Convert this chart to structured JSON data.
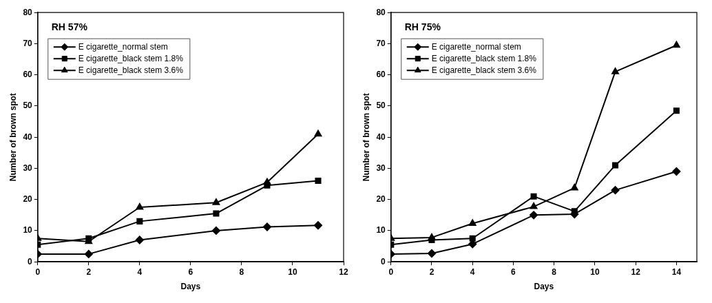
{
  "chart_data": [
    {
      "type": "line",
      "annotations": [
        "RH 57%"
      ],
      "xlabel": "Days",
      "ylabel": "Number of brown spot",
      "x": [
        0,
        2,
        4,
        7,
        9,
        11
      ],
      "xlim": [
        0,
        12
      ],
      "xticks": [
        0,
        2,
        4,
        6,
        8,
        10,
        12
      ],
      "ylim": [
        0,
        80
      ],
      "yticks": [
        0,
        10,
        20,
        30,
        40,
        50,
        60,
        70,
        80
      ],
      "grid": false,
      "legend": "top left",
      "line_style": "solid",
      "series": [
        {
          "name": "E cigarette_normal stem",
          "color": "#000000",
          "marker": "diamond",
          "values": [
            2.5,
            2.5,
            7,
            10,
            11.2,
            11.7
          ]
        },
        {
          "name": "E cigarette_black stem 1.8%",
          "color": "#000000",
          "marker": "square",
          "values": [
            5.5,
            7.5,
            13,
            15.5,
            24.5,
            26
          ]
        },
        {
          "name": "E cigarette_black stem 3.6%",
          "color": "#000000",
          "marker": "triangle",
          "values": [
            7.5,
            6.5,
            17.5,
            19,
            25.5,
            41
          ]
        }
      ]
    },
    {
      "type": "line",
      "annotations": [
        "RH 75%"
      ],
      "xlabel": "Days",
      "ylabel": "Number of brown spot",
      "x": [
        0,
        2,
        4,
        7,
        9,
        11,
        14
      ],
      "xlim": [
        0,
        15
      ],
      "xticks": [
        0,
        2,
        4,
        6,
        8,
        10,
        12,
        14
      ],
      "ylim": [
        0,
        80
      ],
      "yticks": [
        0,
        10,
        20,
        30,
        40,
        50,
        60,
        70,
        80
      ],
      "grid": false,
      "legend": "top left",
      "line_style": "solid",
      "series": [
        {
          "name": "E cigarette_normal stem",
          "color": "#000000",
          "marker": "diamond",
          "values": [
            2.5,
            2.7,
            5.7,
            15,
            15.3,
            23,
            29
          ]
        },
        {
          "name": "E cigarette_black stem 1.8%",
          "color": "#000000",
          "marker": "square",
          "values": [
            5.5,
            7,
            7.5,
            21,
            16.2,
            31,
            48.5
          ]
        },
        {
          "name": "E cigarette_black stem 3.6%",
          "color": "#000000",
          "marker": "triangle",
          "values": [
            7.5,
            7.8,
            12.3,
            17.7,
            23.7,
            61,
            69.5
          ]
        }
      ]
    }
  ]
}
